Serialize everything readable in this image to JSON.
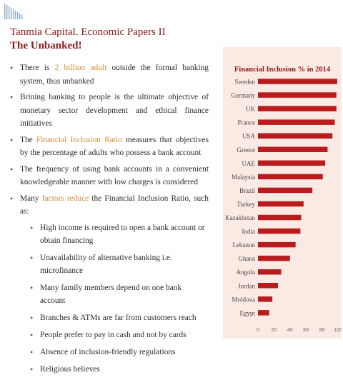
{
  "header": {
    "title": "Tanmia Capital. Economic Papers II",
    "subtitle": "The Unbanked!"
  },
  "bullets": [
    {
      "pre": "There is ",
      "hl": "2 billion adult",
      "post": " outside the formal banking system, thus unbanked"
    },
    {
      "pre": "Brining banking to people is the ultimate objective of monetary sector development and ethical finance initiatives",
      "hl": "",
      "post": ""
    },
    {
      "pre": "The ",
      "hl": "Financial Inclusion Ratio",
      "post": " measures that objectives by the percentage of adults who possess a bank account"
    },
    {
      "pre": "The frequency of using bank accounts in a convenient knowledgeable manner with low charges is considered",
      "hl": "",
      "post": ""
    },
    {
      "pre": "Many ",
      "hl": "factors reduce",
      "post": " the Financial Inclusion Ratio, such as:"
    }
  ],
  "sub_bullets": [
    "High income is required to open a bank account or obtain financing",
    "Unavailability of alternative banking i.e. microfinance",
    "Many family members depend on one bank account",
    "Branches & ATMs are far from customers reach",
    "People prefer to pay in cash and not by cards",
    "Absence of inclusion-friendly regulations",
    "Religious believes"
  ],
  "colors": {
    "accent": "#8b1a1a",
    "highlight": "#d48b39",
    "bar": "#b81c1c",
    "panel": "#fbeae4"
  },
  "chart_data": {
    "type": "bar",
    "orientation": "horizontal",
    "title": "Financial Inclusion % in 2014",
    "categories": [
      "Sweden",
      "Germany",
      "UK",
      "France",
      "USA",
      "Greece",
      "UAE",
      "Malaysia",
      "Brazil",
      "Turkey",
      "Kazakhstan",
      "India",
      "Lebanon",
      "Ghana",
      "Angola",
      "Jordan",
      "Moldova",
      "Egypt"
    ],
    "values": [
      99,
      98,
      98,
      96,
      93,
      87,
      84,
      81,
      68,
      57,
      54,
      53,
      47,
      40,
      29,
      25,
      18,
      14
    ],
    "xlim": [
      0,
      100
    ],
    "xticks": [
      0,
      20,
      40,
      60,
      80,
      100
    ],
    "grid": false,
    "legend": "none"
  }
}
